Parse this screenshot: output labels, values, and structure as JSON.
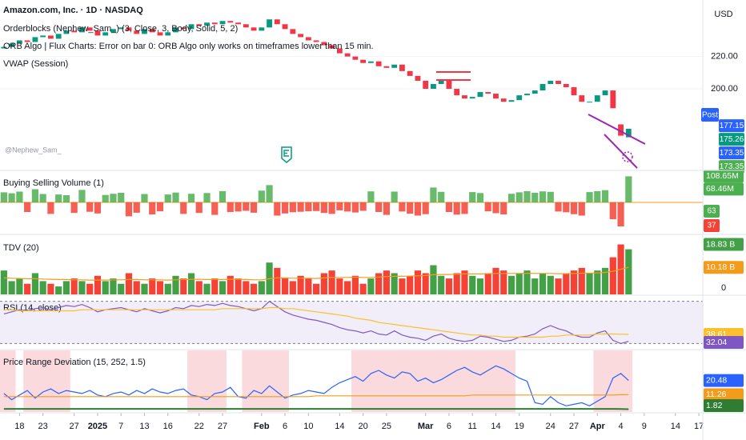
{
  "header": {
    "symbol": "Amazon.com, Inc. · 1D · NASDAQ",
    "indicators": [
      "Orderblocks (Nephew_Sam_) (3, Close, 3, Body, Solid, 5, 2)",
      "ORB Algo | Flux Charts: Error on bar 0: ORB Algo only works on timeframes lower than 15 min.",
      "VWAP (Session)"
    ],
    "watermark": "@Nephew_Sam_",
    "currency": "USD",
    "session": "Post"
  },
  "chart_data": [
    {
      "type": "candlestick",
      "up_color": "#089981",
      "down_color": "#f23645",
      "grid": true,
      "open": [
        225,
        226,
        228,
        230,
        229,
        232,
        233,
        231,
        234,
        236,
        235,
        238,
        236,
        233,
        235,
        237,
        238,
        236,
        234,
        237,
        235,
        233,
        235,
        238,
        237,
        240,
        239,
        241,
        240,
        242,
        241,
        240,
        238,
        236,
        238,
        243,
        240,
        237,
        234,
        232,
        230,
        229,
        227,
        225,
        222,
        220,
        218,
        216,
        217,
        214,
        213,
        215,
        211,
        208,
        205,
        200,
        203,
        205,
        200,
        196,
        194,
        195,
        198,
        197,
        194,
        192,
        193,
        196,
        197,
        199,
        203,
        205,
        203,
        201,
        196,
        192,
        192,
        196,
        199,
        178,
        170
      ],
      "close": [
        226,
        228,
        230,
        229,
        232,
        233,
        231,
        234,
        236,
        235,
        238,
        236,
        233,
        235,
        237,
        238,
        236,
        234,
        237,
        235,
        233,
        235,
        238,
        237,
        240,
        239,
        241,
        240,
        242,
        241,
        240,
        238,
        236,
        238,
        243,
        240,
        237,
        234,
        232,
        230,
        229,
        227,
        225,
        222,
        220,
        218,
        216,
        217,
        214,
        213,
        215,
        211,
        208,
        205,
        200,
        203,
        205,
        200,
        196,
        194,
        195,
        198,
        197,
        194,
        192,
        193,
        196,
        197,
        199,
        203,
        205,
        203,
        201,
        196,
        192,
        192,
        196,
        199,
        188,
        171,
        175.26
      ],
      "ylim": [
        150,
        255
      ],
      "yticks": [
        {
          "value": 200,
          "label": "200.00"
        },
        {
          "value": 220,
          "label": "220.00"
        }
      ],
      "price_labels": [
        {
          "value": 177.15,
          "label": "177.15",
          "color": "#2962ff"
        },
        {
          "value": 175.26,
          "label": "175.26",
          "color": "#089981"
        },
        {
          "value": 173.35,
          "label": "173.35",
          "color": "#2962ff"
        },
        {
          "value": 173.35,
          "label": "173.35",
          "color": "#4caf50"
        }
      ]
    },
    {
      "type": "bar",
      "title": "Buying Selling Volume (1)",
      "up_color": "#4caf50",
      "down_color": "#f44336",
      "values": [
        42,
        38,
        45,
        40,
        55,
        35,
        48,
        33,
        30,
        44,
        52,
        39,
        46,
        31,
        36,
        40,
        58,
        43,
        35,
        50,
        37,
        33,
        41,
        48,
        36,
        44,
        39,
        52,
        47,
        40,
        38,
        35,
        43,
        49,
        72,
        55,
        46,
        41,
        39,
        37,
        36,
        44,
        48,
        33,
        38,
        42,
        35,
        46,
        40,
        52,
        45,
        38,
        47,
        55,
        49,
        62,
        44,
        40,
        51,
        48,
        43,
        39,
        37,
        45,
        50,
        36,
        42,
        47,
        40,
        46,
        44,
        38,
        41,
        49,
        55,
        43,
        47,
        51,
        70,
        100,
        108.65
      ],
      "ylim": [
        -130,
        130
      ],
      "axis_labels": [
        {
          "value": 108.65,
          "label": "108.65M",
          "color": "#4caf50"
        },
        {
          "value": 68.46,
          "label": "68.46M",
          "color": "#4caf50"
        }
      ],
      "percent_labels": [
        {
          "value": 63,
          "color": "#4caf50"
        },
        {
          "value": 37,
          "color": "#f44336"
        }
      ]
    },
    {
      "type": "bar",
      "title": "TDV (20)",
      "up_color": "#43a047",
      "down_color": "#f44336",
      "ma_color": "#f59b1a",
      "values": [
        9,
        5,
        6,
        4,
        8,
        5,
        4,
        3,
        5,
        6,
        5,
        4,
        7,
        5,
        6,
        4,
        8,
        5,
        4,
        6,
        5,
        4,
        7,
        6,
        8,
        5,
        4,
        6,
        5,
        7,
        6,
        5,
        4,
        5,
        12,
        10,
        6,
        5,
        7,
        6,
        4,
        8,
        9,
        6,
        5,
        7,
        4,
        6,
        8,
        9,
        8,
        6,
        7,
        9,
        8,
        11,
        7,
        6,
        8,
        9,
        7,
        6,
        8,
        10,
        9,
        7,
        8,
        9,
        6,
        8,
        7,
        6,
        8,
        9,
        10,
        8,
        9,
        10,
        14,
        18.83,
        17
      ],
      "ma_values": [
        6.2,
        6.1,
        6.0,
        5.9,
        5.9,
        5.8,
        5.7,
        5.6,
        5.6,
        5.5,
        5.5,
        5.4,
        5.4,
        5.4,
        5.5,
        5.5,
        5.6,
        5.6,
        5.5,
        5.5,
        5.5,
        5.4,
        5.5,
        5.6,
        5.7,
        5.7,
        5.6,
        5.6,
        5.6,
        5.7,
        5.7,
        5.6,
        5.5,
        5.5,
        5.9,
        6.2,
        6.2,
        6.1,
        6.1,
        6.1,
        6.0,
        6.2,
        6.4,
        6.4,
        6.4,
        6.5,
        6.4,
        6.4,
        6.5,
        6.7,
        6.8,
        6.8,
        6.9,
        7.0,
        7.1,
        7.4,
        7.5,
        7.5,
        7.6,
        7.7,
        7.7,
        7.7,
        7.8,
        7.9,
        7.9,
        7.9,
        7.9,
        8.0,
        7.9,
        7.9,
        7.9,
        7.8,
        7.8,
        7.9,
        8.0,
        8.0,
        8.1,
        8.3,
        8.7,
        9.5,
        10.18
      ],
      "ylim": [
        0,
        22
      ],
      "yticks": [
        0
      ],
      "axis_labels": [
        {
          "value": 18.83,
          "label": "18.83 B",
          "color": "#43a047"
        },
        {
          "value": 10.18,
          "label": "10.18 B",
          "color": "#f59b1a"
        }
      ]
    },
    {
      "type": "line",
      "title": "RSI (14, close)",
      "ylim": [
        25,
        75
      ],
      "levels": [
        70,
        30
      ],
      "lines": [
        {
          "color": "#7e57c2",
          "values": [
            58,
            60,
            62,
            61,
            63,
            64,
            62,
            64,
            66,
            65,
            67,
            64,
            60,
            62,
            63,
            64,
            62,
            60,
            63,
            61,
            59,
            61,
            64,
            63,
            66,
            65,
            67,
            66,
            68,
            66,
            65,
            63,
            61,
            63,
            70,
            65,
            60,
            57,
            55,
            53,
            52,
            50,
            48,
            45,
            43,
            42,
            40,
            42,
            39,
            38,
            42,
            38,
            36,
            35,
            33,
            37,
            39,
            35,
            33,
            32,
            33,
            37,
            36,
            34,
            32,
            33,
            36,
            37,
            39,
            44,
            47,
            44,
            42,
            38,
            36,
            36,
            40,
            42,
            33,
            30,
            32.04
          ]
        },
        {
          "color": "#fbc02d",
          "values": [
            62,
            62,
            61,
            61,
            61,
            61,
            61,
            61,
            61,
            61,
            62,
            62,
            62,
            62,
            62,
            62,
            62,
            62,
            62,
            62,
            62,
            62,
            62,
            62,
            62,
            62,
            62,
            62,
            63,
            63,
            63,
            63,
            63,
            63,
            64,
            64,
            63,
            63,
            62,
            61,
            60,
            59,
            58,
            57,
            56,
            54,
            53,
            52,
            50,
            49,
            48,
            47,
            46,
            45,
            44,
            43,
            42,
            41,
            40,
            39,
            38,
            38,
            37,
            37,
            36,
            36,
            36,
            36,
            36,
            36,
            37,
            37,
            38,
            38,
            38,
            38,
            39,
            39,
            39,
            38.8,
            38.61
          ]
        }
      ],
      "axis_labels": [
        {
          "value": 38.61,
          "label": "38.61",
          "color": "#fbc02d"
        },
        {
          "value": 32.04,
          "label": "32.04",
          "color": "#7e57c2"
        }
      ]
    },
    {
      "type": "line",
      "title": "Price Range Deviation (15, 252, 1.5)",
      "ylim": [
        0,
        40
      ],
      "shade_color": "#fadadd",
      "shaded_ranges": [
        [
          0,
          1
        ],
        [
          3,
          8
        ],
        [
          24,
          28
        ],
        [
          31,
          36
        ],
        [
          45,
          65
        ],
        [
          76,
          80
        ]
      ],
      "lines": [
        {
          "color": "#2962ff",
          "values": [
            12,
            8,
            11,
            14,
            9,
            13,
            15,
            12,
            14,
            13,
            12,
            14,
            11,
            10,
            12,
            13,
            11,
            14,
            12,
            15,
            13,
            12,
            14,
            15,
            11,
            10,
            8,
            12,
            13,
            16,
            10,
            9,
            14,
            12,
            17,
            13,
            9,
            11,
            12,
            14,
            13,
            12,
            16,
            19,
            21,
            23,
            20,
            25,
            27,
            24,
            22,
            26,
            25,
            20,
            22,
            19,
            21,
            24,
            27,
            29,
            26,
            24,
            27,
            30,
            28,
            25,
            22,
            20,
            6,
            5,
            10,
            6,
            4,
            5,
            6,
            4,
            7,
            10,
            22,
            25,
            20.48
          ]
        },
        {
          "color": "#f59b1a",
          "values": [
            10,
            10,
            10,
            10,
            10,
            10,
            10,
            10,
            10,
            10,
            10,
            10,
            10,
            10,
            10,
            10,
            10,
            10,
            10,
            10,
            10,
            10,
            10,
            10,
            10,
            10,
            10,
            10,
            10,
            10,
            10,
            10,
            10,
            10,
            10,
            10,
            10,
            10,
            10,
            10,
            10.5,
            10.5,
            10.5,
            10.5,
            10.5,
            10.5,
            10.5,
            10.5,
            10.5,
            10.5,
            10.5,
            10.5,
            10.5,
            10.5,
            10.5,
            10.5,
            10.5,
            10.5,
            10.5,
            10.5,
            11,
            11,
            11,
            11,
            11,
            11,
            11,
            11,
            11,
            11,
            11,
            11,
            11,
            11,
            11,
            11,
            11,
            11,
            11,
            11.2,
            11.26
          ]
        },
        {
          "color": "#2e7d32",
          "values": [
            2,
            2,
            2,
            2,
            2,
            2,
            2,
            2,
            2,
            2,
            2,
            2,
            2,
            2,
            2,
            2,
            2,
            2,
            2,
            2,
            2,
            2,
            2,
            2,
            2,
            2,
            2,
            2,
            2,
            2,
            2,
            2,
            2,
            2,
            2,
            2,
            2,
            2,
            2,
            2,
            2,
            2,
            2,
            2,
            2,
            2,
            2,
            2,
            2,
            2,
            2,
            2,
            2,
            2,
            2,
            2,
            2,
            2,
            2,
            2,
            2,
            2,
            2,
            2,
            2,
            2,
            2,
            2,
            2,
            2,
            2,
            2,
            2,
            2,
            2,
            2,
            2,
            2,
            2,
            1.9,
            1.82
          ]
        }
      ],
      "axis_labels": [
        {
          "value": 20.48,
          "label": "20.48",
          "color": "#2962ff"
        },
        {
          "value": 11.26,
          "label": "11.26",
          "color": "#f59b1a"
        },
        {
          "value": 1.82,
          "label": "1.82",
          "color": "#2e7d32"
        }
      ],
      "xlim": [
        -0.5,
        89.5
      ],
      "xticks": [
        {
          "value": 2,
          "label": "18"
        },
        {
          "value": 5,
          "label": "23"
        },
        {
          "value": 9,
          "label": "27"
        },
        {
          "value": 12,
          "label": "2025"
        },
        {
          "value": 15,
          "label": "7"
        },
        {
          "value": 18,
          "label": "13"
        },
        {
          "value": 21,
          "label": "16"
        },
        {
          "value": 25,
          "label": "22"
        },
        {
          "value": 28,
          "label": "27"
        },
        {
          "value": 33,
          "label": "Feb"
        },
        {
          "value": 36,
          "label": "6"
        },
        {
          "value": 39,
          "label": "10"
        },
        {
          "value": 43,
          "label": "14"
        },
        {
          "value": 46,
          "label": "20"
        },
        {
          "value": 49,
          "label": "25"
        },
        {
          "value": 54,
          "label": "Mar"
        },
        {
          "value": 57,
          "label": "6"
        },
        {
          "value": 60,
          "label": "11"
        },
        {
          "value": 63,
          "label": "14"
        },
        {
          "value": 66,
          "label": "19"
        },
        {
          "value": 70,
          "label": "24"
        },
        {
          "value": 73,
          "label": "27"
        },
        {
          "value": 76,
          "label": "Apr"
        },
        {
          "value": 79,
          "label": "4"
        },
        {
          "value": 82,
          "label": "9"
        },
        {
          "value": 86,
          "label": "14"
        },
        {
          "value": 89,
          "label": "17"
        }
      ]
    }
  ]
}
